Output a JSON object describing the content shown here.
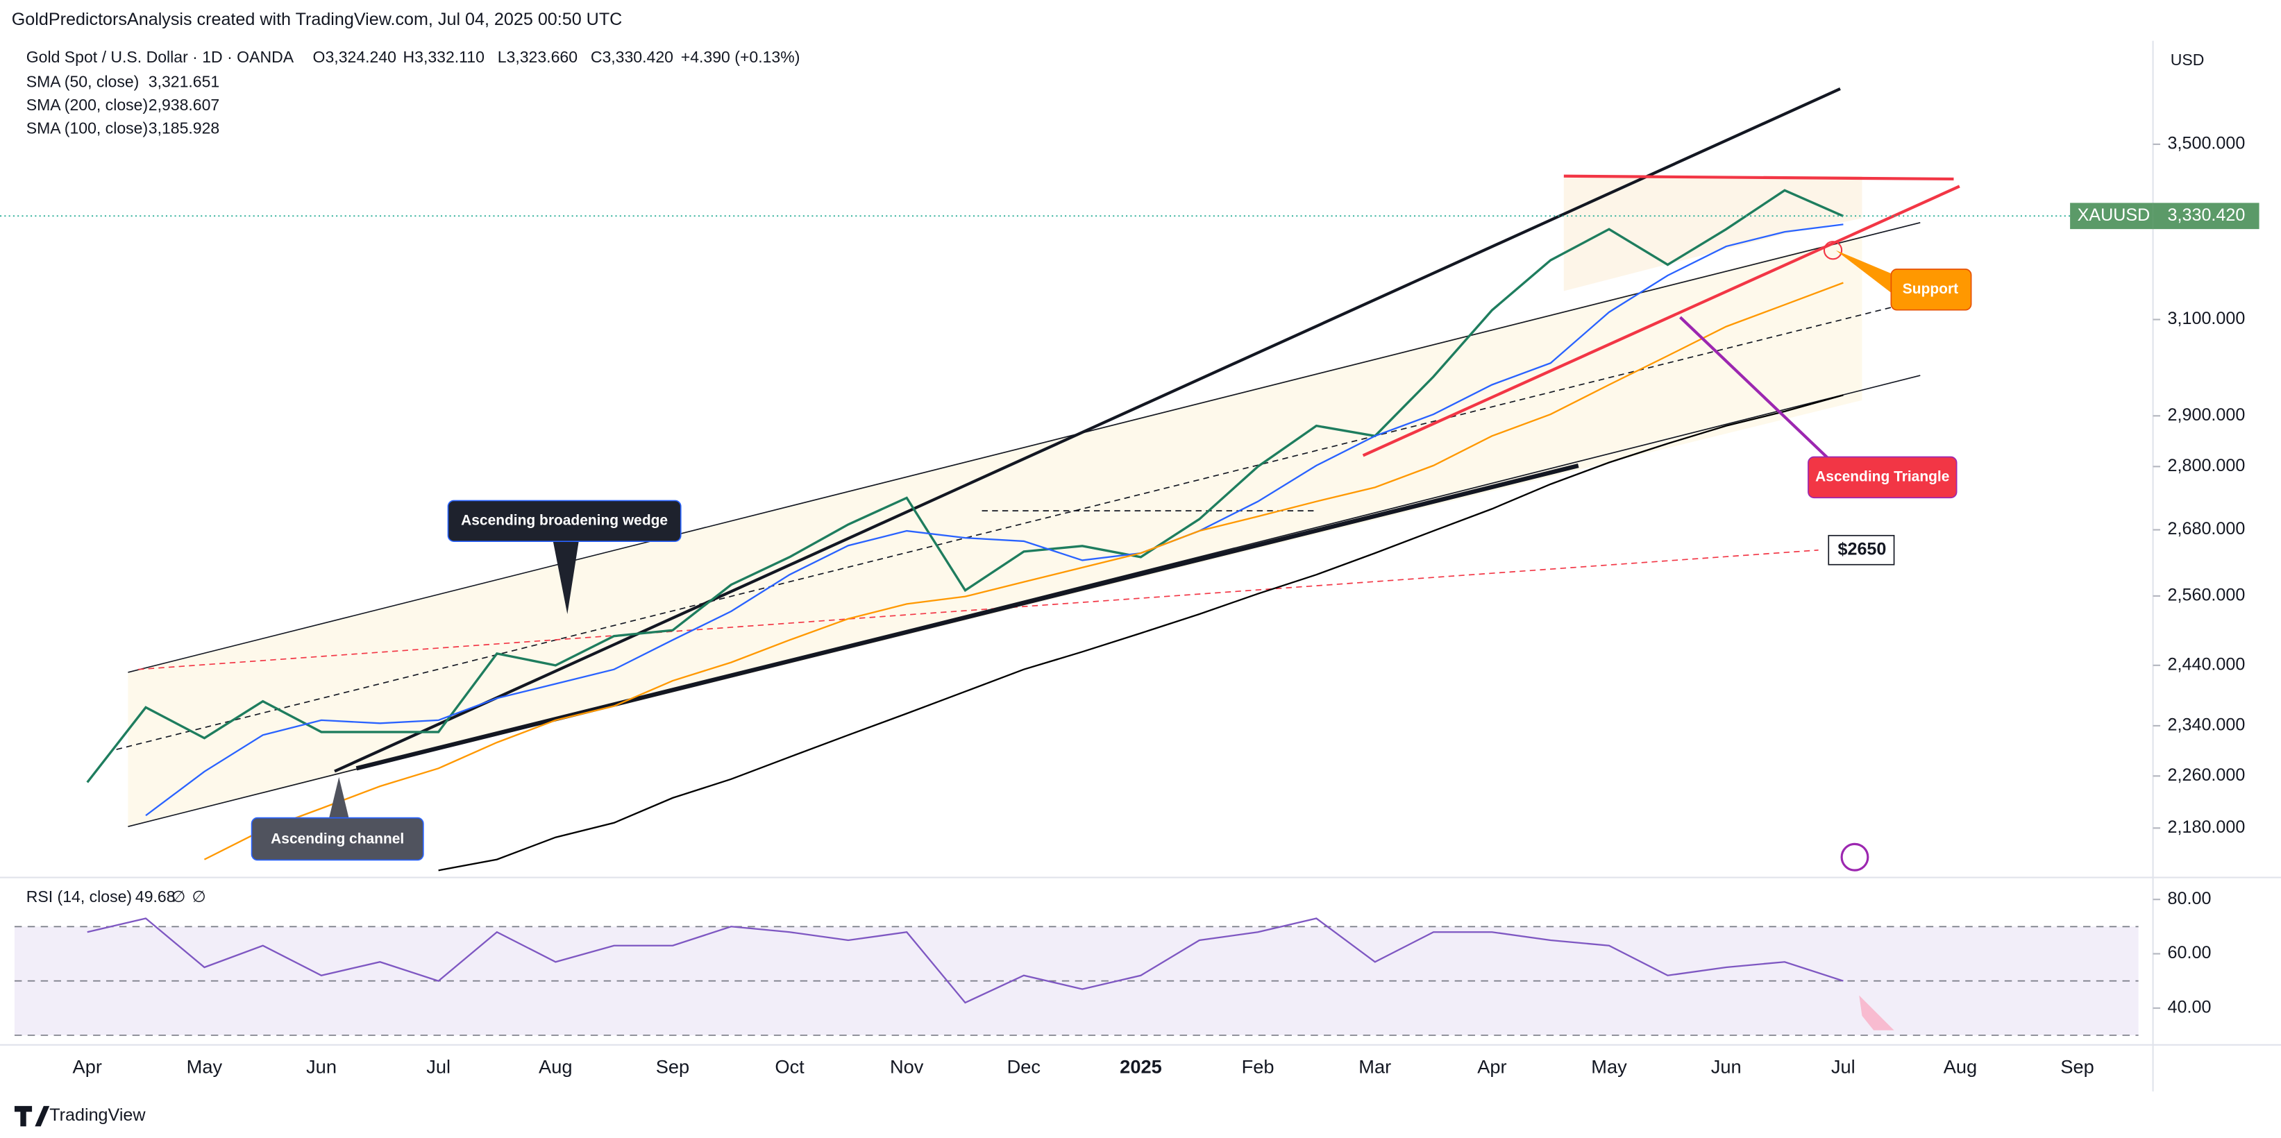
{
  "header": "GoldPredictorsAnalysis created with TradingView.com, Jul 04, 2025 00:50 UTC",
  "footer": "TradingView",
  "chart_data": [
    {
      "type": "line",
      "title": "Gold Spot / U.S. Dollar · 1D · OANDA",
      "ohlc": [
        "O3,324.240",
        "H3,332.110",
        "L3,323.660",
        "C3,330.420",
        "+4.390 (+0.13%)"
      ],
      "y_unit": "USD",
      "log": true,
      "grid": false,
      "categories": [
        "Apr",
        null,
        "May",
        null,
        "Jun",
        null,
        "Jul",
        null,
        "Aug",
        null,
        "Sep",
        null,
        "Oct",
        null,
        "Nov",
        null,
        "Dec",
        null,
        "2025",
        null,
        "Feb",
        null,
        "Mar",
        null,
        "Apr",
        null,
        "May",
        null,
        "Jun",
        null,
        "Jul",
        null,
        "Aug",
        null,
        "Sep"
      ],
      "series": [
        {
          "name": "XAUUSD",
          "color": "#1e7d5e",
          "values": [
            2250,
            2370,
            2320,
            2380,
            2330,
            2330,
            2330,
            2460,
            2440,
            2490,
            2500,
            2580,
            2630,
            2690,
            2740,
            2570,
            2640,
            2650,
            2630,
            2700,
            2800,
            2880,
            2860,
            2980,
            3120,
            3230,
            3300,
            3220,
            3300,
            3390,
            3330,
            null,
            null,
            null,
            null
          ]
        },
        {
          "name": "SMA (50, close)",
          "color": "#2962ff",
          "legend_value": "3,321.651",
          "values": [
            null,
            2199,
            2267,
            2325,
            2349,
            2344,
            2349,
            2385,
            2409,
            2433,
            2483,
            2533,
            2598,
            2651,
            2678,
            2665,
            2659,
            2624,
            2637,
            2678,
            2733,
            2802,
            2860,
            2903,
            2963,
            3008,
            3116,
            3196,
            3261,
            3294,
            3311,
            null,
            null,
            null,
            null
          ]
        },
        {
          "name": "SMA (200, close)",
          "color": "#000000",
          "legend_value": "2,938.607",
          "values": [
            null,
            null,
            null,
            null,
            null,
            null,
            2117,
            2133,
            2166,
            2188,
            2226,
            2255,
            2290,
            2325,
            2360,
            2396,
            2433,
            2463,
            2495,
            2528,
            2564,
            2598,
            2637,
            2678,
            2719,
            2766,
            2808,
            2845,
            2880,
            2909,
            2942,
            null,
            null,
            null,
            null
          ]
        },
        {
          "name": "SMA (100, close)",
          "color": "#ff9800",
          "legend_value": "3,185.928",
          "values": [
            null,
            null,
            2133,
            2177,
            2210,
            2244,
            2272,
            2313,
            2349,
            2372,
            2414,
            2445,
            2483,
            2520,
            2546,
            2559,
            2585,
            2611,
            2637,
            2678,
            2705,
            2733,
            2760,
            2802,
            2860,
            2903,
            2963,
            3023,
            3085,
            3132,
            3180,
            null,
            null,
            null,
            null
          ]
        }
      ],
      "last_price": {
        "value": 3330.42,
        "label": "3,330.420"
      },
      "ylim": [
        2113,
        3760
      ],
      "yticks": [
        {
          "value": 3500,
          "label": "3,500.000"
        },
        {
          "value": 3100,
          "label": "3,100.000"
        },
        {
          "value": 2900,
          "label": "2,900.000"
        },
        {
          "value": 2800,
          "label": "2,800.000"
        },
        {
          "value": 2680,
          "label": "2,680.000"
        },
        {
          "value": 2560,
          "label": "2,560.000"
        },
        {
          "value": 2440,
          "label": "2,440.000"
        },
        {
          "value": 2340,
          "label": "2,340.000"
        },
        {
          "value": 2260,
          "label": "2,260.000"
        },
        {
          "value": 2180,
          "label": "2,180.000"
        }
      ],
      "annotations": [
        "Ascending broadening wedge",
        "Ascending channel",
        "Support",
        "Ascending Triangle",
        "$2650"
      ]
    },
    {
      "type": "line",
      "title": "RSI (14, close)",
      "legend_extras": [
        "∅",
        "∅"
      ],
      "categories": [
        "Apr",
        null,
        "May",
        null,
        "Jun",
        null,
        "Jul",
        null,
        "Aug",
        null,
        "Sep",
        null,
        "Oct",
        null,
        "Nov",
        null,
        "Dec",
        null,
        "2025",
        null,
        "Feb",
        null,
        "Mar",
        null,
        "Apr",
        null,
        "May",
        null,
        "Jun",
        null,
        "Jul",
        null,
        "Aug",
        null,
        "Sep"
      ],
      "series": [
        {
          "name": "RSI",
          "color": "#7e57c2",
          "legend_value": "49.68",
          "values": [
            68,
            73,
            55,
            63,
            52,
            57,
            50,
            68,
            57,
            63,
            63,
            70,
            68,
            65,
            68,
            42,
            52,
            47,
            52,
            65,
            68,
            73,
            57,
            68,
            68,
            65,
            63,
            52,
            55,
            57,
            50,
            null,
            null,
            null,
            null
          ]
        }
      ],
      "bands": [
        70,
        50,
        30
      ],
      "ylim": [
        27,
        87
      ],
      "yticks": [
        {
          "value": 80,
          "label": "80.00"
        },
        {
          "value": 60,
          "label": "60.00"
        },
        {
          "value": 40,
          "label": "40.00"
        }
      ]
    }
  ]
}
